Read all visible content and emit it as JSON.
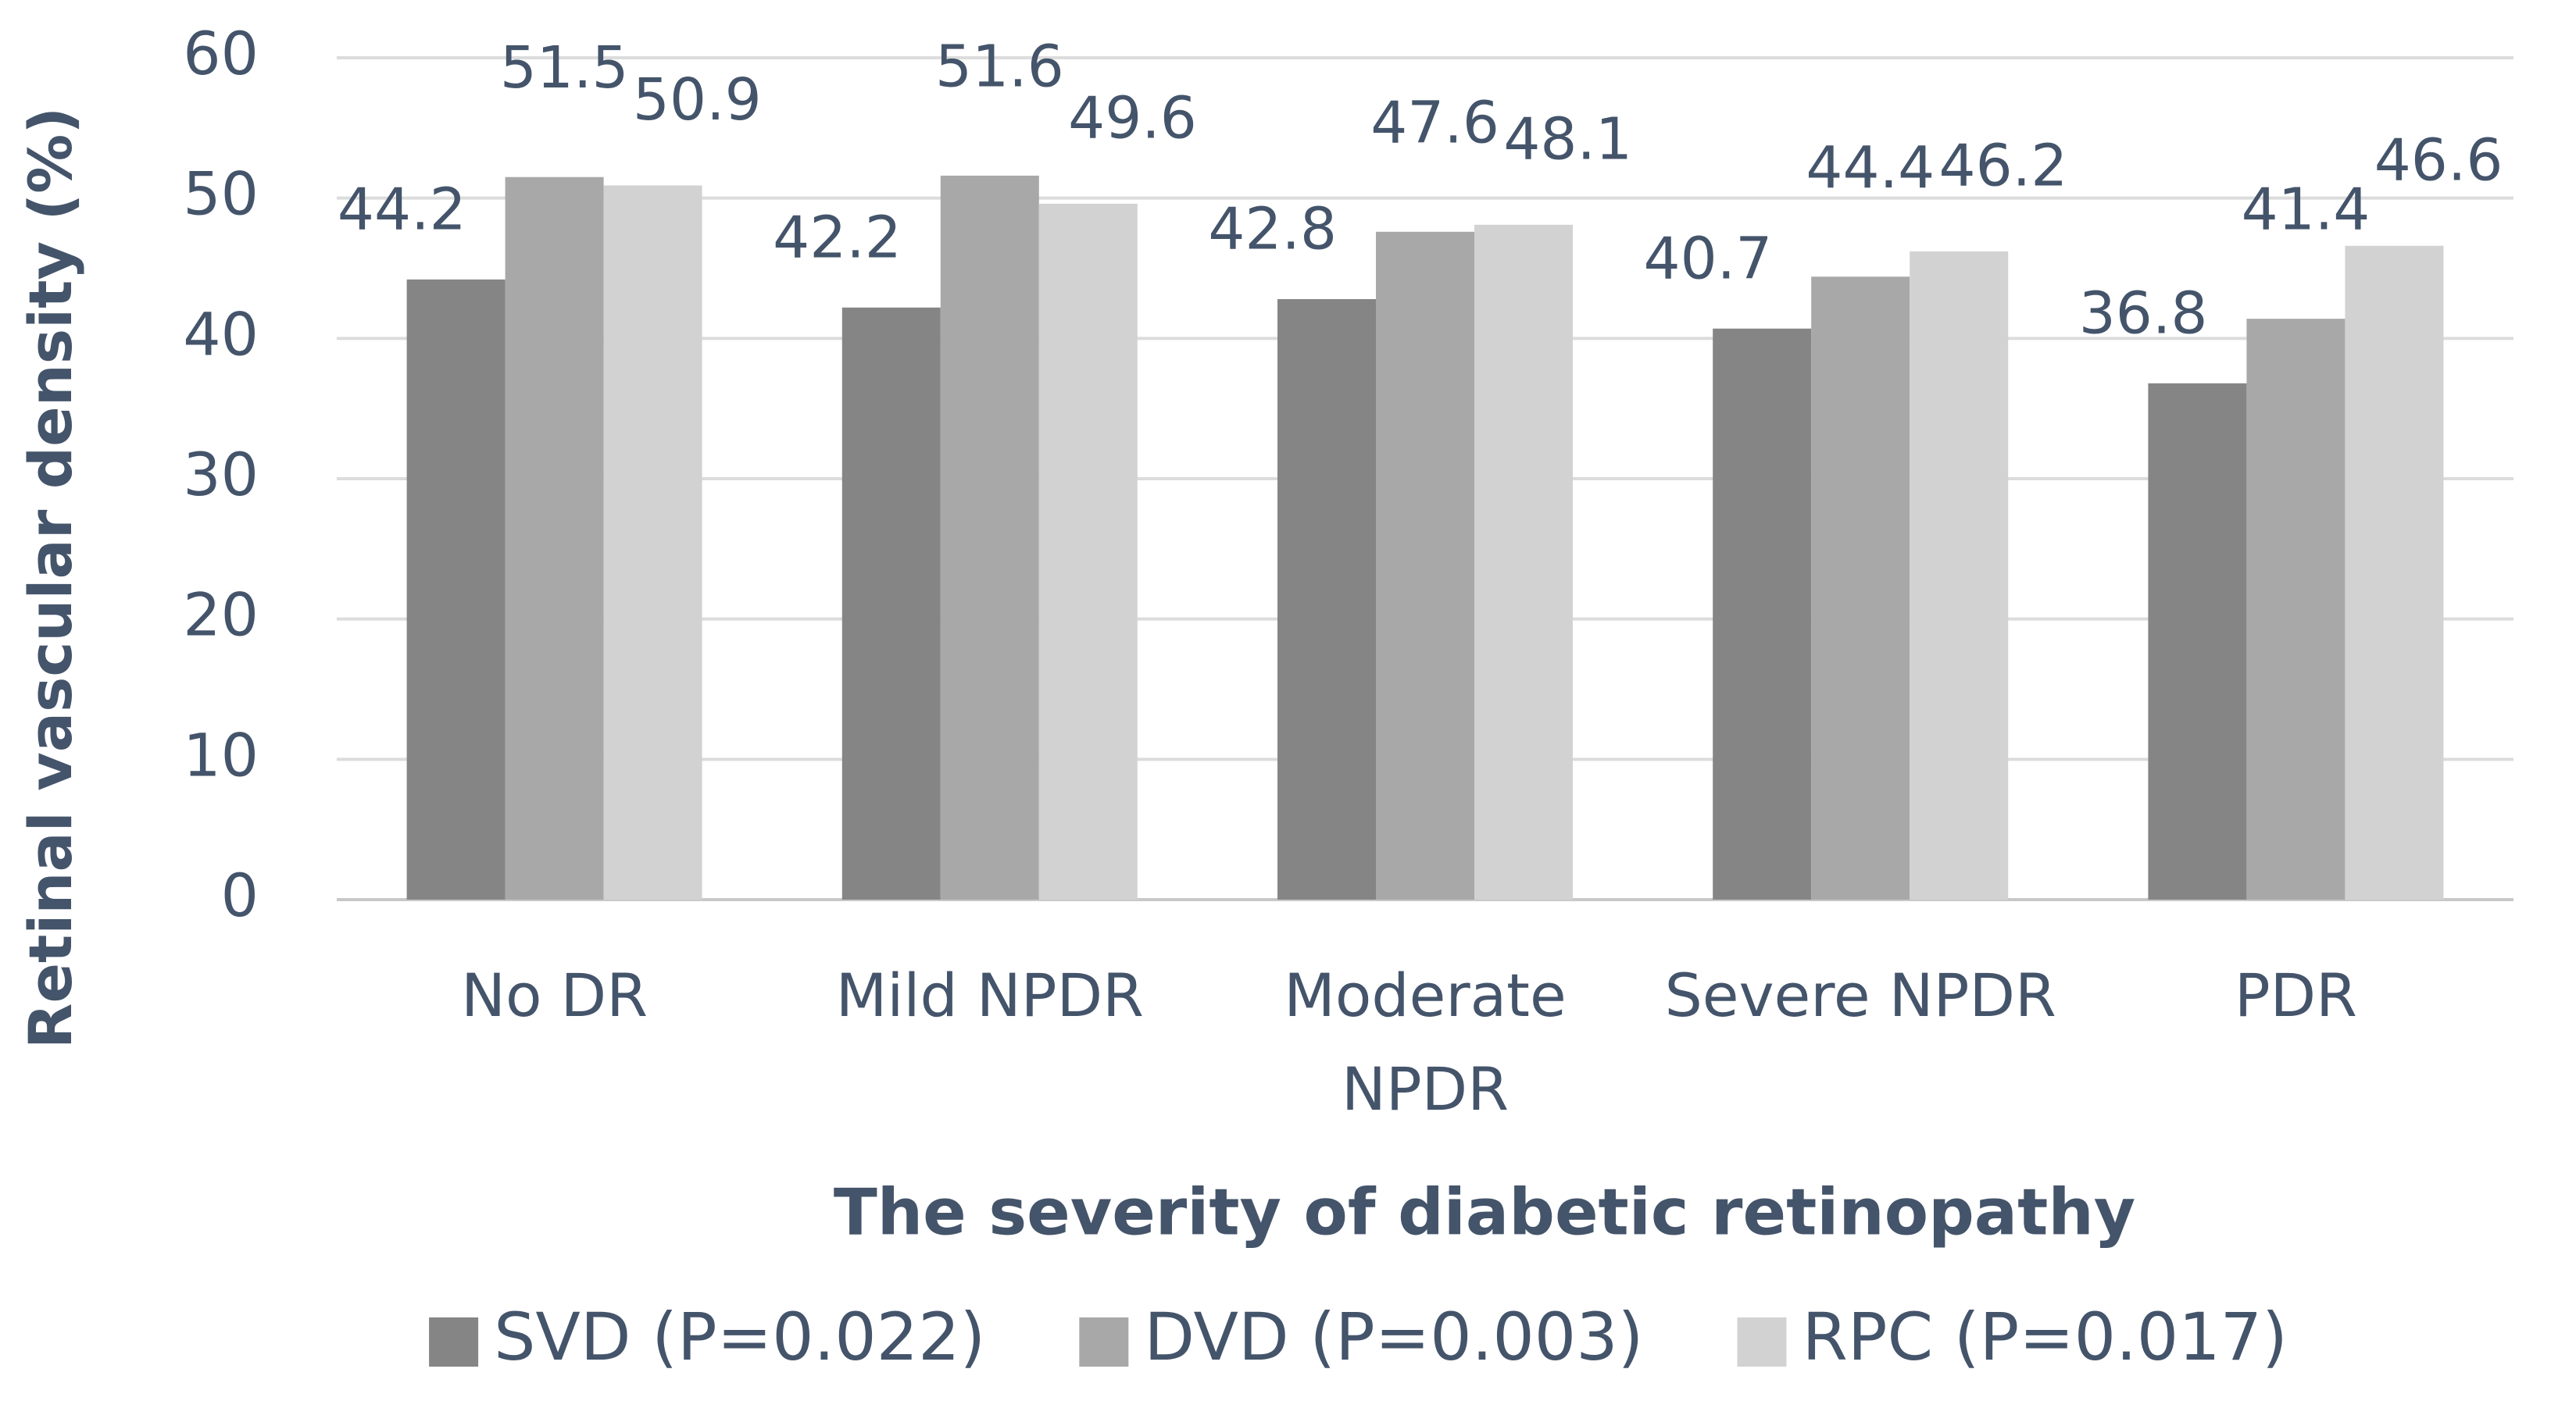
{
  "chart_data": {
    "type": "bar",
    "y_label": "Retinal vascular density (%)",
    "x_label": "The severity of diabetic retinopathy",
    "categories": [
      "No DR",
      "Mild NPDR",
      "Moderate NPDR",
      "Severe NPDR",
      "PDR"
    ],
    "series": [
      {
        "name": "SVD (P=0.022)",
        "color": "#858585",
        "values": [
          44.2,
          42.2,
          42.8,
          40.7,
          36.8
        ]
      },
      {
        "name": "DVD (P=0.003)",
        "color": "#a8a8a8",
        "values": [
          51.5,
          51.6,
          47.6,
          44.4,
          41.4
        ]
      },
      {
        "name": "RPC (P=0.017)",
        "color": "#d2d2d2",
        "values": [
          50.9,
          49.6,
          48.1,
          46.2,
          46.6
        ]
      }
    ],
    "ylim": [
      0,
      60
    ],
    "yticks": [
      0,
      10,
      20,
      30,
      40,
      50,
      60
    ],
    "grid": true,
    "legend": "bottom"
  }
}
